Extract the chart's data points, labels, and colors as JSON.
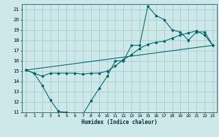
{
  "xlabel": "Humidex (Indice chaleur)",
  "bg_color": "#cce8e8",
  "grid_color": "#aacccc",
  "line_color": "#006666",
  "xlim": [
    -0.5,
    23.5
  ],
  "ylim": [
    11,
    21.5
  ],
  "xtick_labels": [
    "0",
    "1",
    "2",
    "3",
    "4",
    "5",
    "6",
    "7",
    "8",
    "9",
    "10",
    "11",
    "12",
    "13",
    "14",
    "15",
    "16",
    "17",
    "18",
    "19",
    "20",
    "21",
    "22",
    "23"
  ],
  "xtick_vals": [
    0,
    1,
    2,
    3,
    4,
    5,
    6,
    7,
    8,
    9,
    10,
    11,
    12,
    13,
    14,
    15,
    16,
    17,
    18,
    19,
    20,
    21,
    22,
    23
  ],
  "ytick_vals": [
    11,
    12,
    13,
    14,
    15,
    16,
    17,
    18,
    19,
    20,
    21
  ],
  "line1_x": [
    0,
    1,
    2,
    3,
    4,
    5,
    6,
    7,
    8,
    9,
    10,
    11,
    12,
    13,
    14,
    15,
    16,
    17,
    18,
    19,
    20,
    21,
    22,
    23
  ],
  "line1_y": [
    15.1,
    14.8,
    13.6,
    12.2,
    11.1,
    11.0,
    10.85,
    10.8,
    12.1,
    13.3,
    14.5,
    16.0,
    16.0,
    17.5,
    17.5,
    21.3,
    20.4,
    20.0,
    19.0,
    18.8,
    18.0,
    18.8,
    18.8,
    17.5
  ],
  "line2_x": [
    0,
    1,
    2,
    3,
    4,
    5,
    6,
    7,
    8,
    9,
    10,
    11,
    12,
    13,
    14,
    15,
    16,
    17,
    18,
    19,
    20,
    21,
    22,
    23
  ],
  "line2_y": [
    15.1,
    14.8,
    14.5,
    14.8,
    14.8,
    14.8,
    14.8,
    14.7,
    14.8,
    14.8,
    15.0,
    15.5,
    16.1,
    16.6,
    17.2,
    17.6,
    17.8,
    17.9,
    18.2,
    18.5,
    18.7,
    18.9,
    18.5,
    17.5
  ],
  "line3_x": [
    0,
    23
  ],
  "line3_y": [
    15.1,
    17.5
  ]
}
